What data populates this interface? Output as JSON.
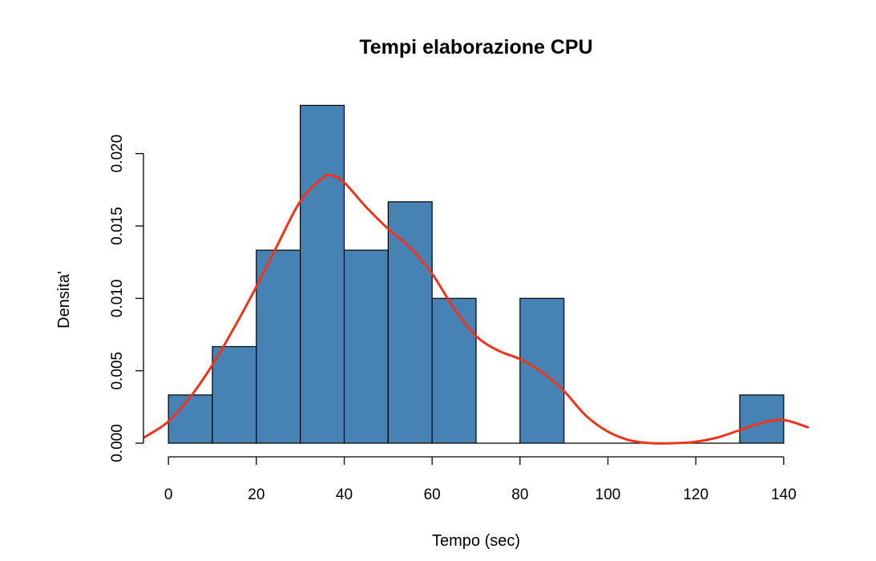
{
  "chart_data": {
    "type": "bar",
    "title": "Tempi elaborazione CPU",
    "xlabel": "Tempo (sec)",
    "ylabel": "Densita'",
    "xlim": [
      -5.5,
      145.5
    ],
    "ylim": [
      0,
      0.0233
    ],
    "x_ticks": [
      0,
      20,
      40,
      60,
      80,
      100,
      120,
      140
    ],
    "x_tick_labels": [
      "0",
      "20",
      "40",
      "60",
      "80",
      "100",
      "120",
      "140"
    ],
    "y_ticks": [
      0,
      0.005,
      0.01,
      0.015,
      0.02
    ],
    "y_tick_labels": [
      "0.000",
      "0.005",
      "0.010",
      "0.015",
      "0.020"
    ],
    "grid": false,
    "bins": [
      {
        "start": 0,
        "end": 10,
        "density": 0.00333
      },
      {
        "start": 10,
        "end": 20,
        "density": 0.00667
      },
      {
        "start": 20,
        "end": 30,
        "density": 0.01333
      },
      {
        "start": 30,
        "end": 40,
        "density": 0.02333
      },
      {
        "start": 40,
        "end": 50,
        "density": 0.01333
      },
      {
        "start": 50,
        "end": 60,
        "density": 0.01667
      },
      {
        "start": 60,
        "end": 70,
        "density": 0.01
      },
      {
        "start": 70,
        "end": 80,
        "density": 0
      },
      {
        "start": 80,
        "end": 90,
        "density": 0.01
      },
      {
        "start": 90,
        "end": 100,
        "density": 0
      },
      {
        "start": 100,
        "end": 110,
        "density": 0
      },
      {
        "start": 110,
        "end": 120,
        "density": 0
      },
      {
        "start": 120,
        "end": 130,
        "density": 0
      },
      {
        "start": 130,
        "end": 140,
        "density": 0.00333
      }
    ],
    "density_curve": {
      "x": [
        -5.5,
        0,
        5,
        10,
        15,
        20,
        25,
        30,
        35,
        37,
        40,
        45,
        50,
        55,
        60,
        65,
        70,
        75,
        80,
        85,
        90,
        95,
        100,
        105,
        110,
        115,
        120,
        125,
        130,
        135,
        140,
        145.5
      ],
      "y": [
        0.0004,
        0.0015,
        0.0032,
        0.0054,
        0.008,
        0.0108,
        0.0138,
        0.0167,
        0.0183,
        0.0185,
        0.018,
        0.0163,
        0.0148,
        0.0135,
        0.0117,
        0.0093,
        0.0074,
        0.0064,
        0.0058,
        0.0049,
        0.0036,
        0.0019,
        0.0008,
        0.0002,
        0,
        0,
        0.0001,
        0.0004,
        0.0009,
        0.0014,
        0.0016,
        0.0011
      ]
    },
    "colors": {
      "bar_fill": "#4682b4",
      "bar_stroke": "#000000",
      "density_line": "#f0341c"
    }
  }
}
